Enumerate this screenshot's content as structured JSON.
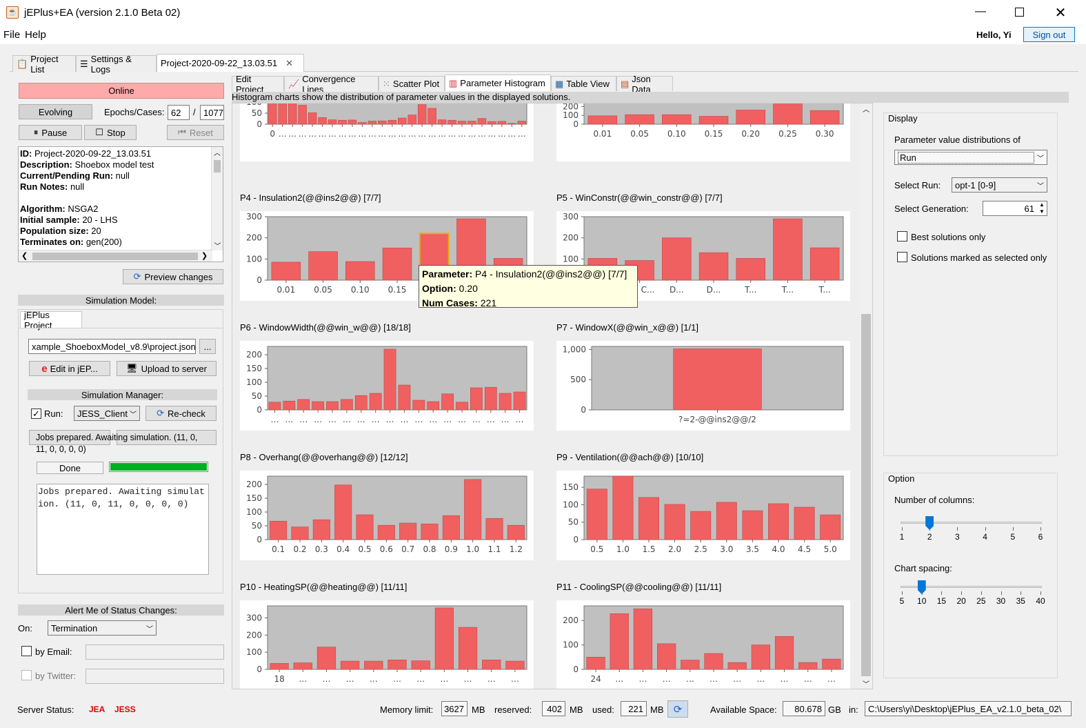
{
  "window": {
    "title": "jEPlus+EA (version 2.1.0 Beta 02)"
  },
  "menu": {
    "file": "File",
    "help": "Help",
    "greeting": "Hello, Yi",
    "signout": "Sign out"
  },
  "tabs_top": [
    {
      "label": "Project List"
    },
    {
      "label": "Settings & Logs"
    },
    {
      "label": "Project-2020-09-22_13.03.51"
    }
  ],
  "left": {
    "online": "Online",
    "evolving": "Evolving",
    "epochs_label": "Epochs/Cases:",
    "epochs": "62",
    "slash": "/",
    "cases": "1077",
    "pause": "Pause",
    "stop": "Stop",
    "reset": "Reset",
    "info": [
      {
        "k": "ID:",
        "v": " Project-2020-09-22_13.03.51"
      },
      {
        "k": "Description:",
        "v": " Shoebox model test"
      },
      {
        "k": "Current/Pending Run:",
        "v": " null"
      },
      {
        "k": "Run Notes:",
        "v": " null"
      },
      {
        "k": "",
        "v": ""
      },
      {
        "k": "Algorithm:",
        "v": " NSGA2"
      },
      {
        "k": "Initial sample:",
        "v": " 20 - LHS"
      },
      {
        "k": "Population size:",
        "v": " 20"
      },
      {
        "k": "Terminates on:",
        "v": " gen(200)"
      }
    ],
    "preview": "Preview changes",
    "sim_model": "Simulation Model:",
    "jeplus_tab": "jEPlus Project",
    "project_path": "xample_ShoeboxModel_v8.9\\project.json",
    "browse": "...",
    "edit_jep": "Edit in jEP...",
    "upload": "Upload to server",
    "sim_manager": "Simulation Manager:",
    "run_label": "Run:",
    "run_client": "JESS_Client",
    "recheck": "Re-check",
    "status_line1": "Jobs prepared. Awaiting simulation. (11, 0,",
    "status_line2": "11, 0, 0, 0, 0)",
    "done": "Done",
    "progress": 1.0,
    "log_line1": "Jobs prepared. Awaiting simulat",
    "log_line2": "ion. (11, 0, 11, 0, 0, 0, 0)",
    "alert": "Alert Me of Status Changes:",
    "on_label": "On:",
    "on_value": "Termination",
    "email": "by Email:",
    "twitter": "by Twitter:"
  },
  "subtabs": [
    {
      "label": "Edit Project"
    },
    {
      "label": "Convergence Lines"
    },
    {
      "label": "Scatter Plot"
    },
    {
      "label": "Parameter Histogram"
    },
    {
      "label": "Table View"
    },
    {
      "label": "Json Data"
    }
  ],
  "desc": "Histogram charts show the distribution of parameter values in the displayed solutions.",
  "tooltip": {
    "k1": "Parameter:",
    "v1": " P4 - Insulation2(@@ins2@@) [7/7]",
    "k2": "Option:",
    "v2": " 0.20",
    "k3": "Num Cases:",
    "v3": " 221"
  },
  "right": {
    "display": "Display",
    "pv_label": "Parameter value distributions of",
    "pv_value": "Run",
    "select_run": "Select Run:",
    "run_value": "opt-1 [0-9]",
    "select_gen": "Select Generation:",
    "gen_value": "61",
    "best": "Best solutions only",
    "marked": "Solutions marked as selected only",
    "option": "Option",
    "ncols": "Number of columns:",
    "ncols_ticks": [
      "1",
      "2",
      "3",
      "4",
      "5",
      "6"
    ],
    "ncols_value": 2,
    "spacing": "Chart spacing:",
    "spacing_ticks": [
      "5",
      "10",
      "15",
      "20",
      "25",
      "30",
      "35",
      "40"
    ],
    "spacing_value": 10
  },
  "status": {
    "server": "Server Status:",
    "jea": "JEA",
    "jess": "JESS",
    "mem": "Memory limit:",
    "mem_v": "3627",
    "mb1": "MB",
    "res": "reserved:",
    "res_v": "402",
    "mb2": "MB",
    "used": "used:",
    "used_v": "221",
    "mb3": "MB",
    "avail": "Available Space:",
    "avail_v": "80.678",
    "gb": "GB",
    "in": "in:",
    "path": "C:\\Users\\yi\\Desktop\\jEPlus_EA_v2.1.0_beta_02\\"
  },
  "colors": {
    "bar": "#f06060",
    "plot_bg": "#c0c0c0",
    "online": "#ffaaaa",
    "progress": "#00b020",
    "jea": "#e00000",
    "slider": "#0078d7"
  },
  "chart_data": [
    {
      "type": "bar",
      "title": "",
      "ylim": [
        0,
        100
      ],
      "yticks": [
        "0",
        "50",
        "100"
      ],
      "categories": [
        "0",
        "…",
        "…",
        "…",
        "…",
        "…",
        "…",
        "…",
        "…",
        "…",
        "…",
        "…",
        "…",
        "…",
        "…",
        "…",
        "…",
        "…",
        "…",
        "…",
        "…",
        "…",
        "…",
        "…",
        "…",
        "…"
      ],
      "values": [
        98,
        105,
        101,
        86,
        52,
        30,
        20,
        18,
        19,
        8,
        14,
        15,
        18,
        28,
        42,
        89,
        72,
        20,
        18,
        14,
        14,
        26,
        12,
        13,
        4,
        14
      ]
    },
    {
      "type": "bar",
      "title": "",
      "ylim": [
        0,
        250
      ],
      "yticks": [
        "0",
        "100",
        "200"
      ],
      "categories": [
        "0.01",
        "0.05",
        "0.10",
        "0.15",
        "0.20",
        "0.25",
        "0.30"
      ],
      "values": [
        95,
        108,
        108,
        90,
        160,
        270,
        155
      ]
    },
    {
      "type": "bar",
      "title": "P4 - Insulation2(@@ins2@@) [7/7]",
      "ylim": [
        0,
        300
      ],
      "yticks": [
        "0",
        "100",
        "200",
        "300"
      ],
      "categories": [
        "0.01",
        "0.05",
        "0.10",
        "0.15",
        "0.20",
        "0.25",
        "0.30"
      ],
      "values": [
        85,
        135,
        88,
        152,
        221,
        290,
        103
      ],
      "highlight": 4
    },
    {
      "type": "bar",
      "title": "P5 - WinConstr(@@win_constr@@) [7/7]",
      "ylim": [
        0,
        300
      ],
      "yticks": [
        "0",
        "100",
        "200",
        "300"
      ],
      "categories": [
        "D...",
        "Dbl C...",
        "D...",
        "D...",
        "T...",
        "T...",
        "T..."
      ],
      "values": [
        103,
        93,
        200,
        130,
        103,
        290,
        153
      ]
    },
    {
      "type": "bar",
      "title": "P6 - WindowWidth(@@win_w@@) [18/18]",
      "ylim": [
        0,
        230
      ],
      "yticks": [
        "0",
        "50",
        "100",
        "150",
        "200"
      ],
      "categories": [
        "…",
        "…",
        "…",
        "…",
        "…",
        "…",
        "…",
        "…",
        "…",
        "…",
        "…",
        "…",
        "…",
        "…",
        "…",
        "…",
        "…",
        "…"
      ],
      "values": [
        28,
        32,
        38,
        30,
        30,
        38,
        52,
        60,
        220,
        90,
        35,
        30,
        58,
        28,
        80,
        82,
        60,
        65
      ]
    },
    {
      "type": "bar",
      "title": "P7 - WindowX(@@win_x@@) [1/1]",
      "ylim": [
        0,
        1050
      ],
      "yticks": [
        "0",
        "500",
        "1,000"
      ],
      "categories": [
        "?=2-@@ins2@@/2"
      ],
      "values": [
        1010
      ]
    },
    {
      "type": "bar",
      "title": "P8 - Overhang(@@overhang@@) [12/12]",
      "ylim": [
        0,
        230
      ],
      "yticks": [
        "0",
        "50",
        "100",
        "150",
        "200"
      ],
      "categories": [
        "0.1",
        "0.2",
        "0.3",
        "0.4",
        "0.5",
        "0.6",
        "0.7",
        "0.8",
        "0.9",
        "1.0",
        "1.1",
        "1.2"
      ],
      "values": [
        67,
        46,
        72,
        198,
        90,
        52,
        60,
        57,
        87,
        218,
        77,
        52
      ]
    },
    {
      "type": "bar",
      "title": "P9 - Ventilation(@@ach@@) [10/10]",
      "ylim": [
        0,
        182
      ],
      "yticks": [
        "0",
        "50",
        "100",
        "150"
      ],
      "categories": [
        "0.5",
        "1.0",
        "1.5",
        "2.0",
        "2.5",
        "3.0",
        "3.5",
        "4.0",
        "4.5",
        "5.0"
      ],
      "values": [
        145,
        190,
        121,
        101,
        81,
        107,
        83,
        103,
        93,
        71
      ]
    },
    {
      "type": "bar",
      "title": "P10 - HeatingSP(@@heating@@) [11/11]",
      "ylim": [
        0,
        370
      ],
      "yticks": [
        "0",
        "100",
        "200",
        "300"
      ],
      "categories": [
        "18",
        "…",
        "…",
        "…",
        "…",
        "…",
        "…",
        "…",
        "…",
        "…",
        "…"
      ],
      "values": [
        35,
        38,
        130,
        48,
        48,
        55,
        50,
        358,
        245,
        55,
        48
      ]
    },
    {
      "type": "bar",
      "title": "P11 - CoolingSP(@@cooling@@) [11/11]",
      "ylim": [
        0,
        260
      ],
      "yticks": [
        "0",
        "100",
        "200"
      ],
      "categories": [
        "24",
        "…",
        "…",
        "…",
        "…",
        "…",
        "…",
        "…",
        "…",
        "…",
        "…"
      ],
      "values": [
        50,
        228,
        248,
        105,
        38,
        65,
        28,
        100,
        135,
        28,
        42
      ]
    }
  ]
}
